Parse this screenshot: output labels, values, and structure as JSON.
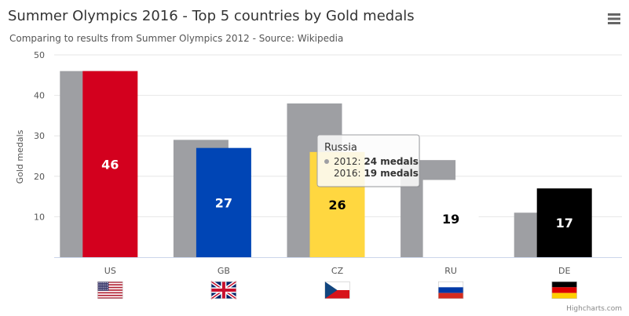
{
  "chart_data": {
    "type": "bar",
    "title": "Summer Olympics 2016 - Top 5 countries by Gold medals",
    "subtitle": "Comparing to results from Summer Olympics 2012 - Source: Wikipedia",
    "ylabel": "Gold medals",
    "xlabel": "",
    "ylim": [
      0,
      50
    ],
    "yticks": [
      "50",
      "40",
      "30",
      "20",
      "10"
    ],
    "categories": [
      "US",
      "GB",
      "CZ",
      "RU",
      "DE"
    ],
    "series": [
      {
        "name": "2012",
        "values": [
          46,
          29,
          38,
          24,
          11
        ],
        "color": "#9e9fa3"
      },
      {
        "name": "2016",
        "values": [
          46,
          27,
          26,
          19,
          17
        ],
        "colors": [
          "#d3001e",
          "#0045b5",
          "#ffd740",
          "#ffffff",
          "#000000"
        ],
        "label_colors": [
          "#ffffff",
          "#ffffff",
          "#000000",
          "#000000",
          "#ffffff"
        ]
      }
    ],
    "grid": true,
    "legend": "none",
    "tooltip": {
      "title": "Russia",
      "lines": [
        {
          "prefix": "2012: ",
          "value": "24 medals"
        },
        {
          "prefix": "2016: ",
          "value": "19 medals"
        }
      ]
    },
    "flags": [
      "us-flag-icon",
      "gb-flag-icon",
      "cz-flag-icon",
      "ru-flag-icon",
      "de-flag-icon"
    ],
    "credits": "Highcharts.com",
    "menu_icon": "hamburger-menu-icon"
  }
}
